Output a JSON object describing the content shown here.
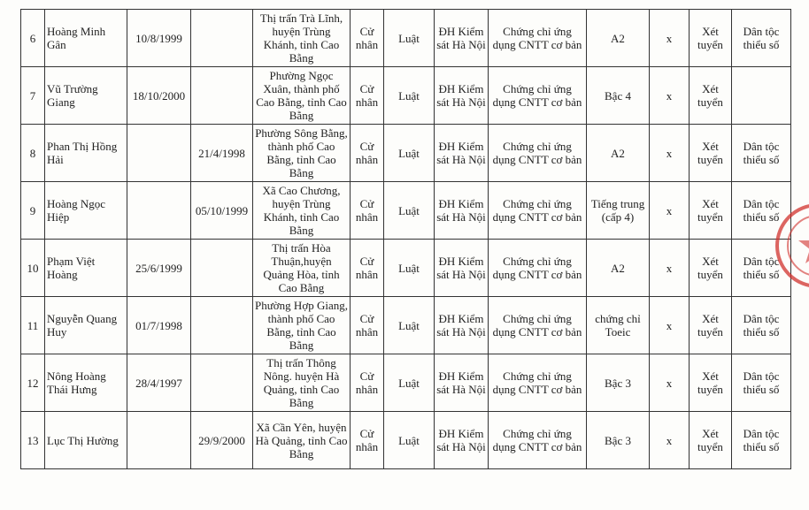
{
  "table": {
    "rows": [
      [
        "6",
        "Hoàng Minh Gân",
        "10/8/1999",
        null,
        "Thị trấn Trà Lĩnh, huyện Trùng Khánh, tỉnh Cao Bằng",
        "Cử nhân",
        "Luật",
        "ĐH Kiểm sát Hà Nội",
        "Chứng chỉ ứng dụng CNTT cơ bản",
        "A2",
        "x",
        "Xét tuyển",
        "Dân tộc thiểu số"
      ],
      [
        "7",
        "Vũ Trường Giang",
        "18/10/2000",
        null,
        "Phường Ngọc Xuân, thành phố Cao Bằng, tỉnh Cao Bằng",
        "Cử nhân",
        "Luật",
        "ĐH Kiểm sát Hà Nội",
        "Chứng chỉ ứng dụng CNTT cơ bản",
        "Bậc 4",
        "x",
        "Xét tuyển",
        null
      ],
      [
        "8",
        "Phan Thị Hồng Hải",
        null,
        "21/4/1998",
        "Phường Sông Bằng, thành phố Cao Bằng, tỉnh Cao Bằng",
        "Cử nhân",
        "Luật",
        "ĐH Kiểm sát Hà Nội",
        "Chứng chỉ ứng dụng CNTT cơ bản",
        "A2",
        "x",
        "Xét tuyển",
        "Dân tộc thiểu số"
      ],
      [
        "9",
        "Hoàng Ngọc Hiệp",
        null,
        "05/10/1999",
        "Xã Cao Chương, huyện Trùng Khánh, tỉnh Cao Bằng",
        "Cử nhân",
        "Luật",
        "ĐH Kiểm sát Hà Nội",
        "Chứng chỉ ứng dụng CNTT cơ bản",
        "Tiếng trung (cấp 4)",
        "x",
        "Xét tuyển",
        "Dân tộc thiểu số"
      ],
      [
        "10",
        "Phạm Việt Hoàng",
        "25/6/1999",
        null,
        "Thị trấn Hòa Thuận,huyện Quảng Hòa, tỉnh Cao Bằng",
        "Cử nhân",
        "Luật",
        "ĐH Kiểm sát Hà Nội",
        "Chứng chỉ ứng dụng CNTT cơ bản",
        "A2",
        "x",
        "Xét tuyển",
        "Dân tộc thiểu số"
      ],
      [
        "11",
        "Nguyễn Quang Huy",
        "01/7/1998",
        null,
        "Phường Hợp Giang, thành phố Cao Bằng, tỉnh Cao Bằng",
        "Cử nhân",
        "Luật",
        "ĐH Kiểm sát Hà Nội",
        "Chứng chỉ ứng dụng CNTT cơ bản",
        "chứng chỉ Toeic",
        "x",
        "Xét tuyển",
        "Dân tộc thiểu số"
      ],
      [
        "12",
        "Nông Hoàng Thái Hưng",
        "28/4/1997",
        null,
        "Thị trấn Thông Nông. huyện Hà Quảng, tỉnh Cao Bằng",
        "Cử nhân",
        "Luật",
        "ĐH Kiểm sát Hà Nội",
        "Chứng chỉ ứng dụng CNTT cơ bản",
        "Bậc 3",
        "x",
        "Xét tuyển",
        "Dân tộc thiểu số"
      ],
      [
        "13",
        "Lục Thị Hường",
        null,
        "29/9/2000",
        "Xã Cần Yên, huyện Hà Quảng, tỉnh Cao Bằng",
        "Cử nhân",
        "Luật",
        "ĐH Kiểm sát Hà Nội",
        "Chứng chỉ ứng dụng CNTT cơ bản",
        "Bậc 3",
        "x",
        "Xét tuyển",
        "Dân tộc thiểu số"
      ]
    ]
  }
}
